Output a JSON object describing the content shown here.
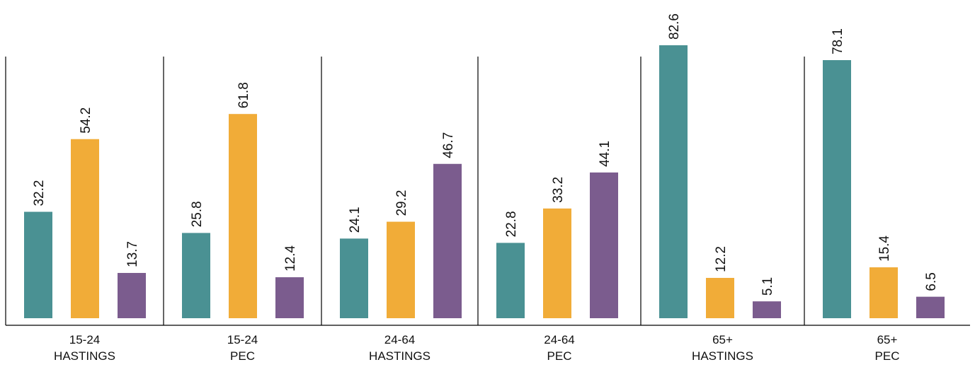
{
  "chart_data": {
    "type": "bar",
    "title": "",
    "xlabel": "",
    "ylabel": "",
    "ylim": [
      0,
      85
    ],
    "grid": false,
    "legend": "none",
    "categories": [
      [
        "15-24",
        "HASTINGS"
      ],
      [
        "15-24",
        "PEC"
      ],
      [
        "24-64",
        "HASTINGS"
      ],
      [
        "24-64",
        "PEC"
      ],
      [
        "65+",
        "HASTINGS"
      ],
      [
        "65+",
        "PEC"
      ]
    ],
    "series": [
      {
        "color": "#4a9193",
        "values": [
          32.2,
          25.8,
          24.1,
          22.8,
          82.6,
          78.1
        ]
      },
      {
        "color": "#f1ac38",
        "values": [
          54.2,
          61.8,
          29.2,
          33.2,
          12.2,
          15.4
        ]
      },
      {
        "color": "#7b5c8e",
        "values": [
          13.7,
          12.4,
          46.7,
          44.1,
          5.1,
          6.5
        ]
      }
    ]
  }
}
